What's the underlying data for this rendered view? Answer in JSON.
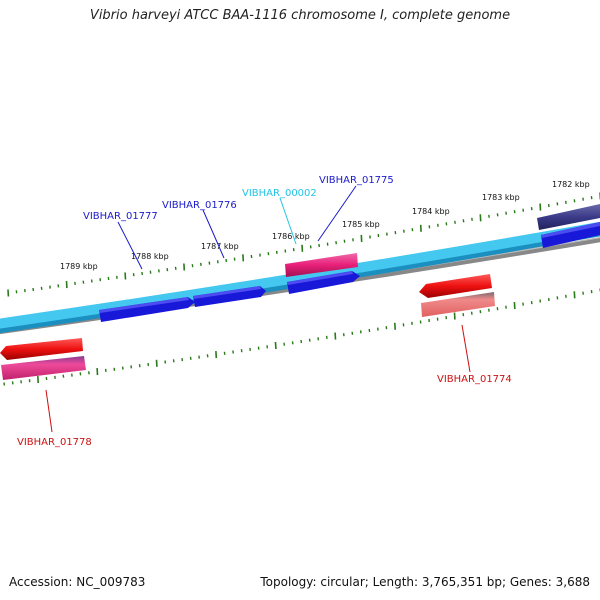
{
  "title": "Vibrio harveyi ATCC BAA-1116 chromosome I, complete genome",
  "footer": {
    "accession": "Accession: NC_009783",
    "summary": "Topology: circular; Length: 3,765,351 bp; Genes: 3,688"
  },
  "scale_labels": [
    "1782 kbp",
    "1783 kbp",
    "1784 kbp",
    "1785 kbp",
    "1786 kbp",
    "1787 kbp",
    "1788 kbp",
    "1789 kbp"
  ],
  "gene_labels": [
    {
      "text": "VIBHAR_00002",
      "color": "#22c3e6"
    },
    {
      "text": "VIBHAR_01775",
      "color": "#1a1acc"
    },
    {
      "text": "VIBHAR_01776",
      "color": "#1a1acc"
    },
    {
      "text": "VIBHAR_01777",
      "color": "#1a1acc"
    },
    {
      "text": "VIBHAR_01774",
      "color": "#cc1111"
    },
    {
      "text": "VIBHAR_01778",
      "color": "#cc1111"
    }
  ],
  "colors": {
    "backbone_light": "#44c8f0",
    "backbone_dark": "#1a8fc0",
    "cds_forward": "#1818d8",
    "cds_dark": "#3a3a8a",
    "cds_reverse": "#ee1111",
    "gene_reverse": "#ee5577",
    "gene_pink": "#e8207a",
    "tick": "#2a7a1a"
  }
}
